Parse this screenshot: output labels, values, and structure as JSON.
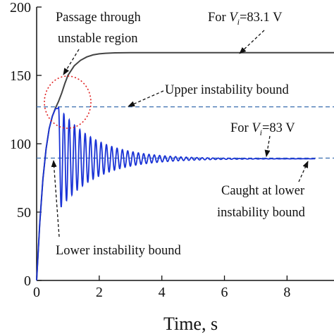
{
  "chart_data": {
    "type": "line",
    "title": "",
    "xlabel": "Time, s",
    "ylabel": "",
    "xlim": [
      0,
      9.5
    ],
    "ylim": [
      0,
      200
    ],
    "xticks": [
      0,
      2,
      4,
      6,
      8
    ],
    "yticks": [
      0,
      50,
      100,
      150,
      200
    ],
    "grid": false,
    "series": [
      {
        "name": "For Vi=83.1 V",
        "color": "#444444",
        "style": "solid",
        "x": [
          0,
          0.1,
          0.2,
          0.3,
          0.4,
          0.5,
          0.6,
          0.7,
          0.8,
          0.9,
          1.0,
          1.2,
          1.4,
          1.6,
          1.8,
          2.0,
          2.2,
          2.5,
          3.0,
          3.5,
          4.0,
          5.0,
          6.0,
          7.0,
          8.0,
          9.0,
          9.5
        ],
        "y": [
          0,
          42,
          74,
          96,
          111,
          120,
          126,
          131,
          137,
          144,
          150,
          157,
          161,
          163.5,
          165,
          165.8,
          166.2,
          166.5,
          166.6,
          166.6,
          166.6,
          166.6,
          166.6,
          166.6,
          166.6,
          166.6,
          166.6
        ]
      },
      {
        "name": "For Vi=83 V",
        "color": "#1a33d6",
        "style": "solid",
        "baseline": 89,
        "amplitude0": 38,
        "decay_rate": 0.85,
        "period": 0.17,
        "x_end": 8.9,
        "rise_x": [
          0,
          0.1,
          0.2,
          0.3,
          0.4,
          0.5,
          0.6,
          0.7
        ],
        "rise_y": [
          0,
          42,
          74,
          96,
          111,
          120,
          125.5,
          126
        ]
      },
      {
        "name": "Upper instability bound",
        "color": "#3a6fb0",
        "style": "dashed",
        "y": 127
      },
      {
        "name": "Lower instability bound",
        "color": "#3a6fb0",
        "style": "dashed",
        "y": 89.5
      }
    ],
    "annotations": [
      {
        "id": "passage",
        "lines": [
          "Passage through",
          "unstable region"
        ]
      },
      {
        "id": "vi831",
        "prefix": "For ",
        "var": "V",
        "sub": "i",
        "suffix": "=83.1 V"
      },
      {
        "id": "upper",
        "lines": [
          "Upper instability bound"
        ]
      },
      {
        "id": "vi83",
        "prefix": "For ",
        "var": "V",
        "sub": "i",
        "suffix": "=83 V"
      },
      {
        "id": "caught",
        "lines": [
          "Caught at lower",
          "instability bound"
        ]
      },
      {
        "id": "lower",
        "lines": [
          "Lower instability bound"
        ]
      }
    ]
  }
}
